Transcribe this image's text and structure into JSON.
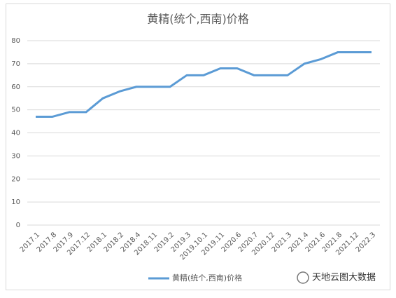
{
  "chart_data": {
    "type": "line",
    "title": "黄精(统个,西南)价格",
    "categories": [
      "2017.1",
      "2017.8",
      "2017.9",
      "2017.12",
      "2018.1",
      "2018.2",
      "2018.4",
      "2018.11",
      "2019.2",
      "2019.3",
      "2019.10.1",
      "2019.11",
      "2020.6",
      "2020.7",
      "2020.12",
      "2021.3",
      "2021.4",
      "2021.6",
      "2021.8",
      "2021.12",
      "2022.3"
    ],
    "series": [
      {
        "name": "黄精(统个,西南)价格",
        "color": "#5b9bd5",
        "values": [
          47,
          47,
          49,
          49,
          55,
          58,
          60,
          60,
          60,
          65,
          65,
          68,
          68,
          65,
          65,
          65,
          70,
          72,
          75,
          75,
          75
        ]
      }
    ],
    "ylim": [
      0,
      80
    ],
    "yticks": [
      0,
      10,
      20,
      30,
      40,
      50,
      60,
      70,
      80
    ],
    "grid": true,
    "legend": "bottom",
    "watermark": "天地云图大数据"
  }
}
